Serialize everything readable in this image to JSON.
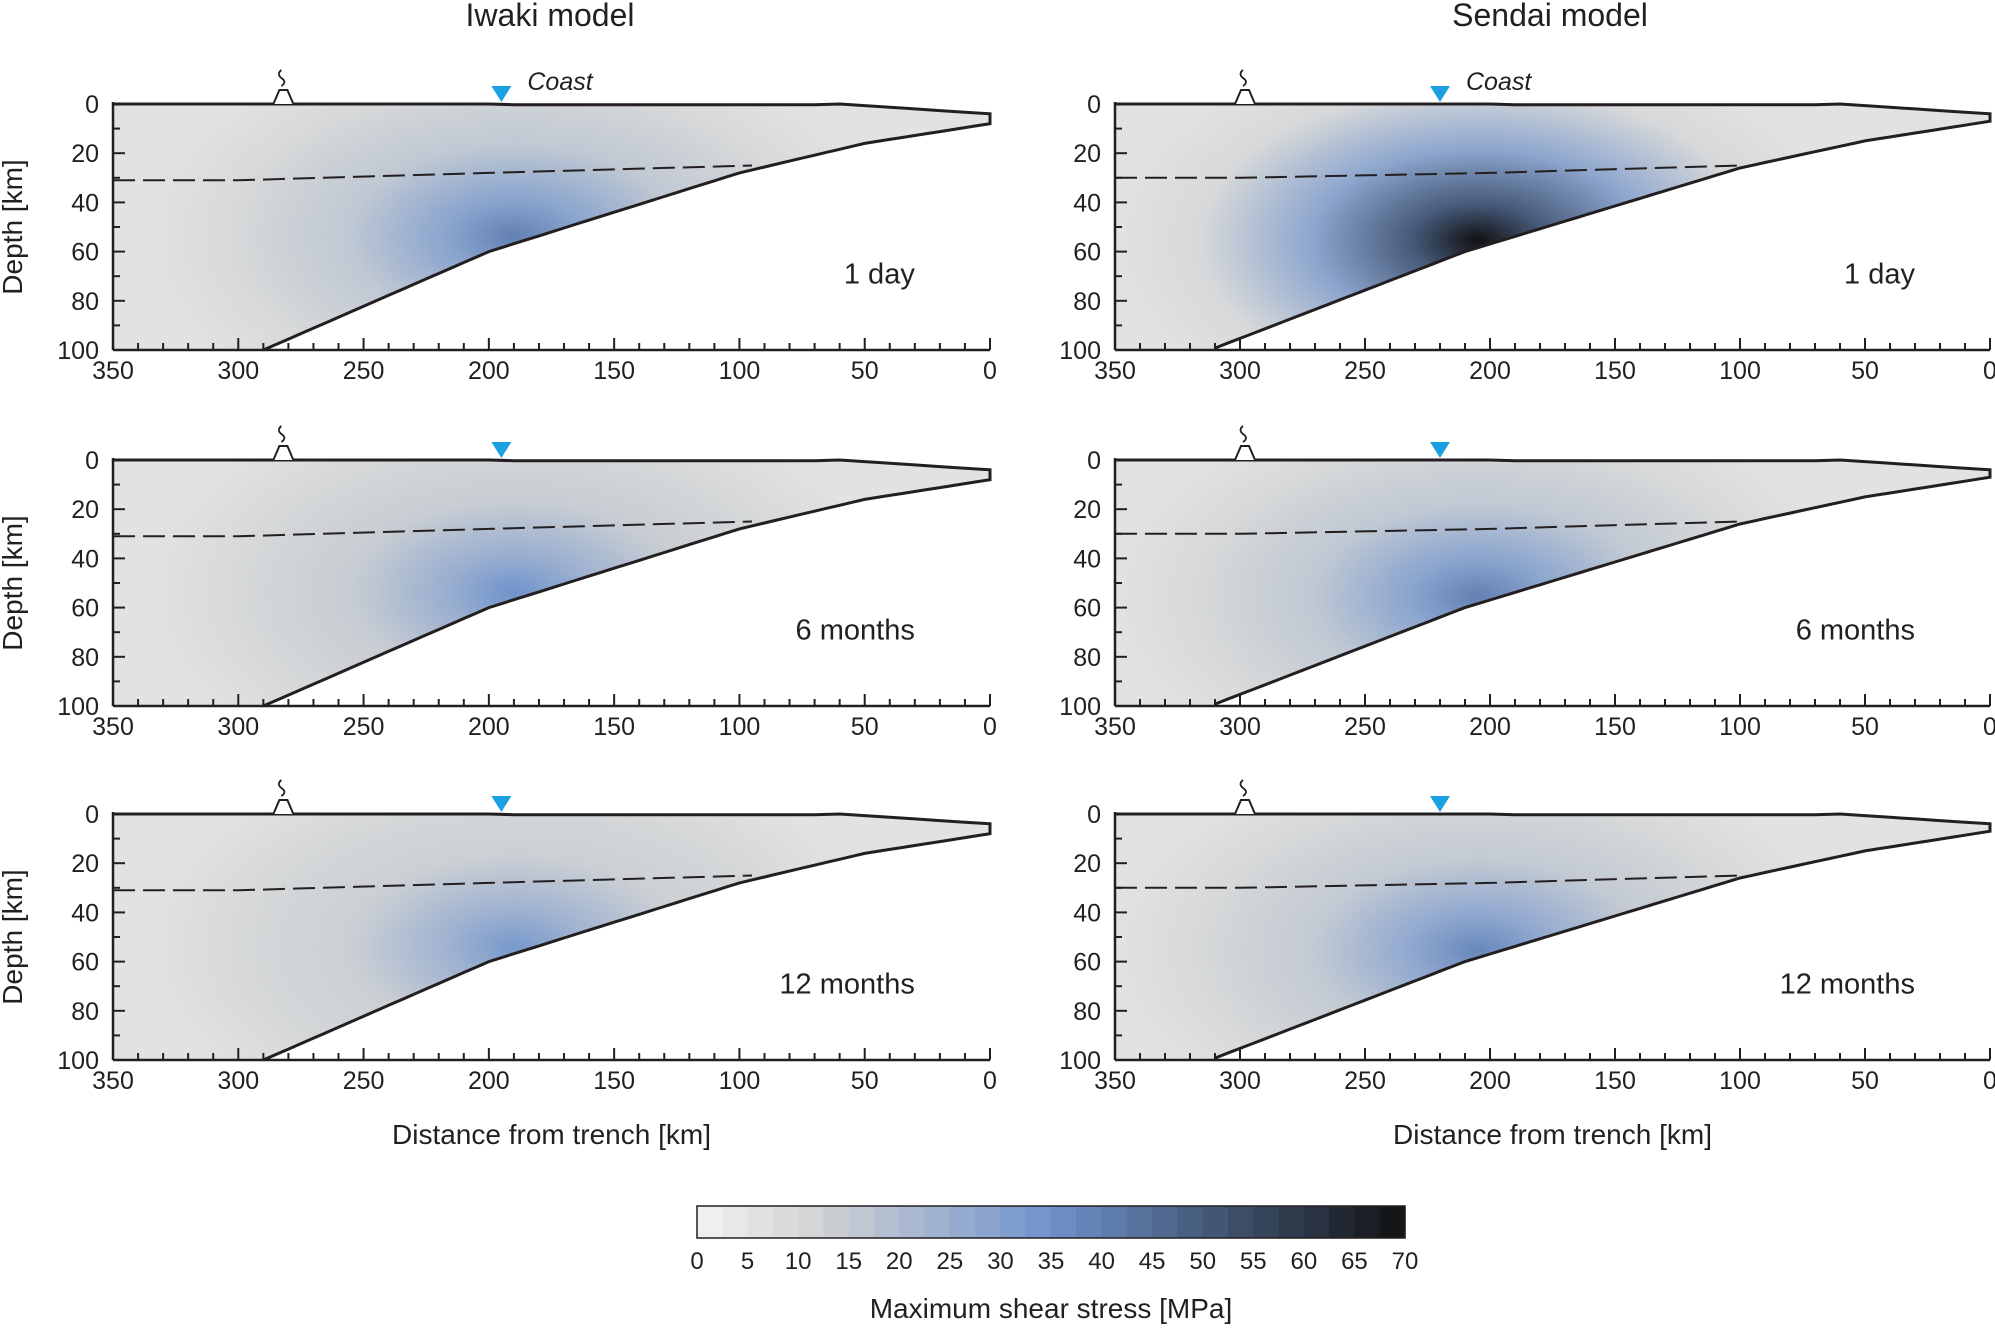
{
  "figure": {
    "column_titles": [
      "Iwaki model",
      "Sendai model"
    ],
    "coast_label": "Coast",
    "colorbar": {
      "label": "Maximum shear stress [MPa]",
      "ticks": [
        0,
        5,
        10,
        15,
        20,
        25,
        30,
        35,
        40,
        45,
        50,
        55,
        60,
        65,
        70
      ],
      "color_low": "#f1f2f2",
      "color_mid": "#6f93cc",
      "color_high": "#111111"
    }
  },
  "chart_data": [
    {
      "type": "heatmap",
      "model": "Iwaki model",
      "time": "1 day",
      "xlabel": "",
      "ylabel": "Depth [km]",
      "xlim": [
        350,
        0
      ],
      "ylim": [
        0,
        100
      ],
      "xticks": [
        350,
        300,
        250,
        200,
        150,
        100,
        50,
        0
      ],
      "yticks": [
        0,
        20,
        40,
        60,
        80,
        100
      ],
      "coast_x_km": 195,
      "volcano_x_km": 282,
      "moho_depth_km": [
        [
          350,
          31
        ],
        [
          300,
          31
        ],
        [
          200,
          28
        ],
        [
          95,
          25
        ]
      ],
      "slab_top_km": [
        [
          290,
          100
        ],
        [
          200,
          60
        ],
        [
          100,
          28
        ],
        [
          50,
          16
        ],
        [
          0,
          8
        ]
      ],
      "peak_stress_mpa": 40
    },
    {
      "type": "heatmap",
      "model": "Sendai model",
      "time": "1 day",
      "xlabel": "",
      "ylabel": "",
      "xlim": [
        350,
        0
      ],
      "ylim": [
        0,
        100
      ],
      "xticks": [
        350,
        300,
        250,
        200,
        150,
        100,
        50,
        0
      ],
      "yticks": [
        0,
        20,
        40,
        60,
        80,
        100
      ],
      "coast_x_km": 220,
      "volcano_x_km": 298,
      "moho_depth_km": [
        [
          350,
          30
        ],
        [
          300,
          30
        ],
        [
          200,
          28
        ],
        [
          100,
          25
        ]
      ],
      "slab_top_km": [
        [
          312,
          100
        ],
        [
          210,
          60
        ],
        [
          100,
          26
        ],
        [
          50,
          15
        ],
        [
          0,
          7
        ]
      ],
      "peak_stress_mpa": 70
    },
    {
      "type": "heatmap",
      "model": "Iwaki model",
      "time": "6 months",
      "xlabel": "",
      "ylabel": "Depth [km]",
      "xlim": [
        350,
        0
      ],
      "ylim": [
        0,
        100
      ],
      "xticks": [
        350,
        300,
        250,
        200,
        150,
        100,
        50,
        0
      ],
      "yticks": [
        0,
        20,
        40,
        60,
        80,
        100
      ],
      "coast_x_km": 195,
      "volcano_x_km": 282,
      "moho_depth_km": [
        [
          350,
          31
        ],
        [
          300,
          31
        ],
        [
          200,
          28
        ],
        [
          95,
          25
        ]
      ],
      "slab_top_km": [
        [
          290,
          100
        ],
        [
          200,
          60
        ],
        [
          100,
          28
        ],
        [
          50,
          16
        ],
        [
          0,
          8
        ]
      ],
      "peak_stress_mpa": 35
    },
    {
      "type": "heatmap",
      "model": "Sendai model",
      "time": "6 months",
      "xlabel": "",
      "ylabel": "",
      "xlim": [
        350,
        0
      ],
      "ylim": [
        0,
        100
      ],
      "xticks": [
        350,
        300,
        250,
        200,
        150,
        100,
        50,
        0
      ],
      "yticks": [
        0,
        20,
        40,
        60,
        80,
        100
      ],
      "coast_x_km": 220,
      "volcano_x_km": 298,
      "moho_depth_km": [
        [
          350,
          30
        ],
        [
          300,
          30
        ],
        [
          200,
          28
        ],
        [
          100,
          25
        ]
      ],
      "slab_top_km": [
        [
          312,
          100
        ],
        [
          210,
          60
        ],
        [
          100,
          26
        ],
        [
          50,
          15
        ],
        [
          0,
          7
        ]
      ],
      "peak_stress_mpa": 40
    },
    {
      "type": "heatmap",
      "model": "Iwaki model",
      "time": "12 months",
      "xlabel": "Distance from trench [km]",
      "ylabel": "Depth [km]",
      "xlim": [
        350,
        0
      ],
      "ylim": [
        0,
        100
      ],
      "xticks": [
        350,
        300,
        250,
        200,
        150,
        100,
        50,
        0
      ],
      "yticks": [
        0,
        20,
        40,
        60,
        80,
        100
      ],
      "coast_x_km": 195,
      "volcano_x_km": 282,
      "moho_depth_km": [
        [
          350,
          31
        ],
        [
          300,
          31
        ],
        [
          200,
          28
        ],
        [
          95,
          25
        ]
      ],
      "slab_top_km": [
        [
          290,
          100
        ],
        [
          200,
          60
        ],
        [
          100,
          28
        ],
        [
          50,
          16
        ],
        [
          0,
          8
        ]
      ],
      "peak_stress_mpa": 33
    },
    {
      "type": "heatmap",
      "model": "Sendai model",
      "time": "12 months",
      "xlabel": "Distance from trench [km]",
      "ylabel": "",
      "xlim": [
        350,
        0
      ],
      "ylim": [
        0,
        100
      ],
      "xticks": [
        350,
        300,
        250,
        200,
        150,
        100,
        50,
        0
      ],
      "yticks": [
        0,
        20,
        40,
        60,
        80,
        100
      ],
      "coast_x_km": 220,
      "volcano_x_km": 298,
      "moho_depth_km": [
        [
          350,
          30
        ],
        [
          300,
          30
        ],
        [
          200,
          28
        ],
        [
          100,
          25
        ]
      ],
      "slab_top_km": [
        [
          312,
          100
        ],
        [
          210,
          60
        ],
        [
          100,
          26
        ],
        [
          50,
          15
        ],
        [
          0,
          7
        ]
      ],
      "peak_stress_mpa": 38
    }
  ]
}
